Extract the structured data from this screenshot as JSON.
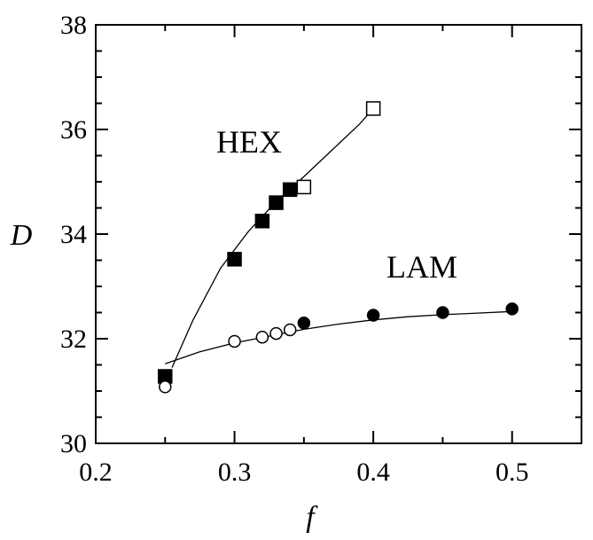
{
  "chart_data": {
    "type": "scatter",
    "xlabel": "f",
    "ylabel": "D",
    "xlim": [
      0.2,
      0.55
    ],
    "ylim": [
      30,
      38
    ],
    "x_ticks": [
      "0.2",
      "0.3",
      "0.4",
      "0.5"
    ],
    "y_ticks": [
      "30",
      "32",
      "34",
      "36",
      "38"
    ],
    "grid": false,
    "annotations": [
      "HEX",
      "LAM"
    ],
    "series": [
      {
        "group": "HEX",
        "marker": "square",
        "fill": "filled",
        "x": [
          0.25,
          0.3,
          0.32,
          0.33,
          0.34
        ],
        "y": [
          31.28,
          33.52,
          34.25,
          34.6,
          34.85
        ]
      },
      {
        "group": "HEX",
        "marker": "square",
        "fill": "open",
        "x": [
          0.35,
          0.4
        ],
        "y": [
          34.9,
          36.4
        ]
      },
      {
        "group": "LAM",
        "marker": "circle",
        "fill": "open",
        "x": [
          0.25,
          0.3,
          0.32,
          0.33,
          0.34
        ],
        "y": [
          31.08,
          31.95,
          32.03,
          32.1,
          32.17
        ]
      },
      {
        "group": "LAM",
        "marker": "circle",
        "fill": "filled",
        "x": [
          0.35,
          0.4,
          0.45,
          0.5
        ],
        "y": [
          32.3,
          32.45,
          32.5,
          32.57
        ]
      }
    ],
    "curves": [
      {
        "group": "HEX",
        "x": [
          0.255,
          0.27,
          0.29,
          0.31,
          0.33,
          0.35,
          0.37,
          0.39,
          0.4
        ],
        "y": [
          31.45,
          32.35,
          33.35,
          34.05,
          34.62,
          35.1,
          35.6,
          36.1,
          36.4
        ]
      },
      {
        "group": "LAM",
        "x": [
          0.25,
          0.275,
          0.3,
          0.325,
          0.35,
          0.375,
          0.4,
          0.425,
          0.45,
          0.475,
          0.5
        ],
        "y": [
          31.52,
          31.75,
          31.92,
          32.05,
          32.18,
          32.28,
          32.36,
          32.42,
          32.46,
          32.49,
          32.52
        ]
      }
    ]
  }
}
